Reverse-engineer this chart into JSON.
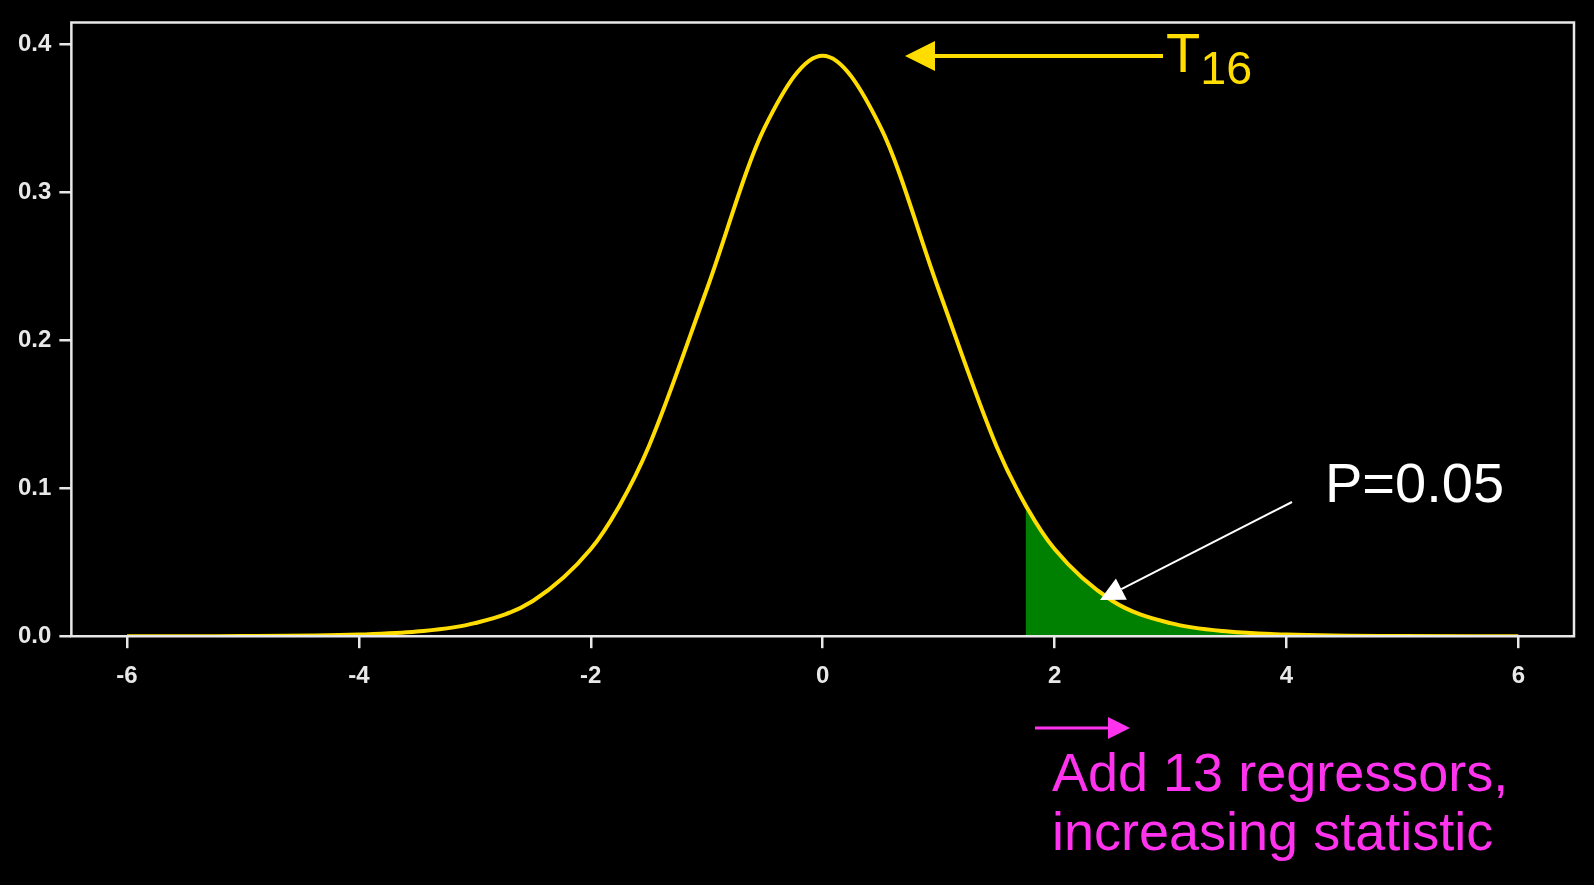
{
  "chart_data": {
    "type": "line",
    "xlim": [
      -6.48,
      6.48
    ],
    "ylim": [
      0,
      0.415
    ],
    "xticks": [
      -6,
      -4,
      -2,
      0,
      2,
      4,
      6
    ],
    "yticks": [
      {
        "value": 0,
        "label": "0.0"
      },
      {
        "value": 0.1,
        "label": "0.1"
      },
      {
        "value": 0.2,
        "label": "0.2"
      },
      {
        "value": 0.3,
        "label": "0.3"
      },
      {
        "value": 0.4,
        "label": "0.4"
      }
    ],
    "grid": false,
    "legend": false,
    "marker": "none",
    "line_style": "solid",
    "series": [
      {
        "color": "#ffdd00",
        "x": [
          -6,
          -5,
          -4,
          -3.5,
          -3,
          -2.5,
          -2,
          -1.75,
          -1.5,
          -1,
          -0.5,
          0,
          0.5,
          1,
          1.5,
          1.75,
          2,
          2.5,
          3,
          3.5,
          4,
          5,
          6
        ],
        "values": [
          0,
          0.0001,
          0.0011,
          0.0031,
          0.0088,
          0.0238,
          0.0589,
          0.0886,
          0.1283,
          0.2344,
          0.344,
          0.3925,
          0.344,
          0.2344,
          0.1283,
          0.0886,
          0.0589,
          0.0238,
          0.0088,
          0.0031,
          0.0011,
          0.0001,
          0
        ]
      },
      {
        "type": "area",
        "color": "#008000",
        "x": [
          1.75,
          2,
          2.5,
          3,
          3.5,
          4,
          5,
          6
        ],
        "values": [
          0.0886,
          0.0589,
          0.0238,
          0.0088,
          0.0031,
          0.0011,
          0.0001,
          0
        ]
      }
    ],
    "annotations": [
      "T$_{16}$",
      "P=0.05",
      "Add 13 regressors,\nincreasing statistic"
    ]
  }
}
